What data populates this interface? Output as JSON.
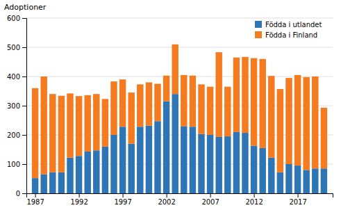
{
  "chart_data": {
    "type": "bar",
    "stacked": true,
    "ylabel": "Adoptioner",
    "x": [
      1987,
      1988,
      1989,
      1990,
      1991,
      1992,
      1993,
      1994,
      1995,
      1996,
      1997,
      1998,
      1999,
      2000,
      2001,
      2002,
      2003,
      2004,
      2005,
      2006,
      2007,
      2008,
      2009,
      2010,
      2011,
      2012,
      2013,
      2014,
      2015,
      2016,
      2017,
      2018,
      2019,
      2020
    ],
    "series": [
      {
        "name": "Födda i utlandet",
        "color": "#2E75B6",
        "values": [
          52,
          65,
          72,
          72,
          122,
          128,
          143,
          147,
          160,
          200,
          228,
          170,
          228,
          232,
          247,
          315,
          340,
          230,
          228,
          203,
          200,
          193,
          195,
          210,
          207,
          163,
          155,
          122,
          72,
          100,
          95,
          80,
          85,
          85
        ]
      },
      {
        "name": "Födda i Finland",
        "color": "#F47B20",
        "values": [
          308,
          335,
          268,
          262,
          220,
          205,
          193,
          193,
          163,
          183,
          162,
          175,
          145,
          148,
          128,
          88,
          170,
          175,
          175,
          170,
          165,
          290,
          170,
          255,
          260,
          300,
          305,
          280,
          285,
          295,
          310,
          318,
          315,
          208
        ]
      }
    ],
    "xlim": [
      1986,
      2021
    ],
    "xticks": [
      1987,
      1992,
      1997,
      2002,
      2007,
      2012,
      2017
    ],
    "ylim": [
      0,
      600
    ],
    "yticks": [
      0,
      100,
      200,
      300,
      400,
      500,
      600
    ],
    "grid": true,
    "legend": "upper right"
  }
}
